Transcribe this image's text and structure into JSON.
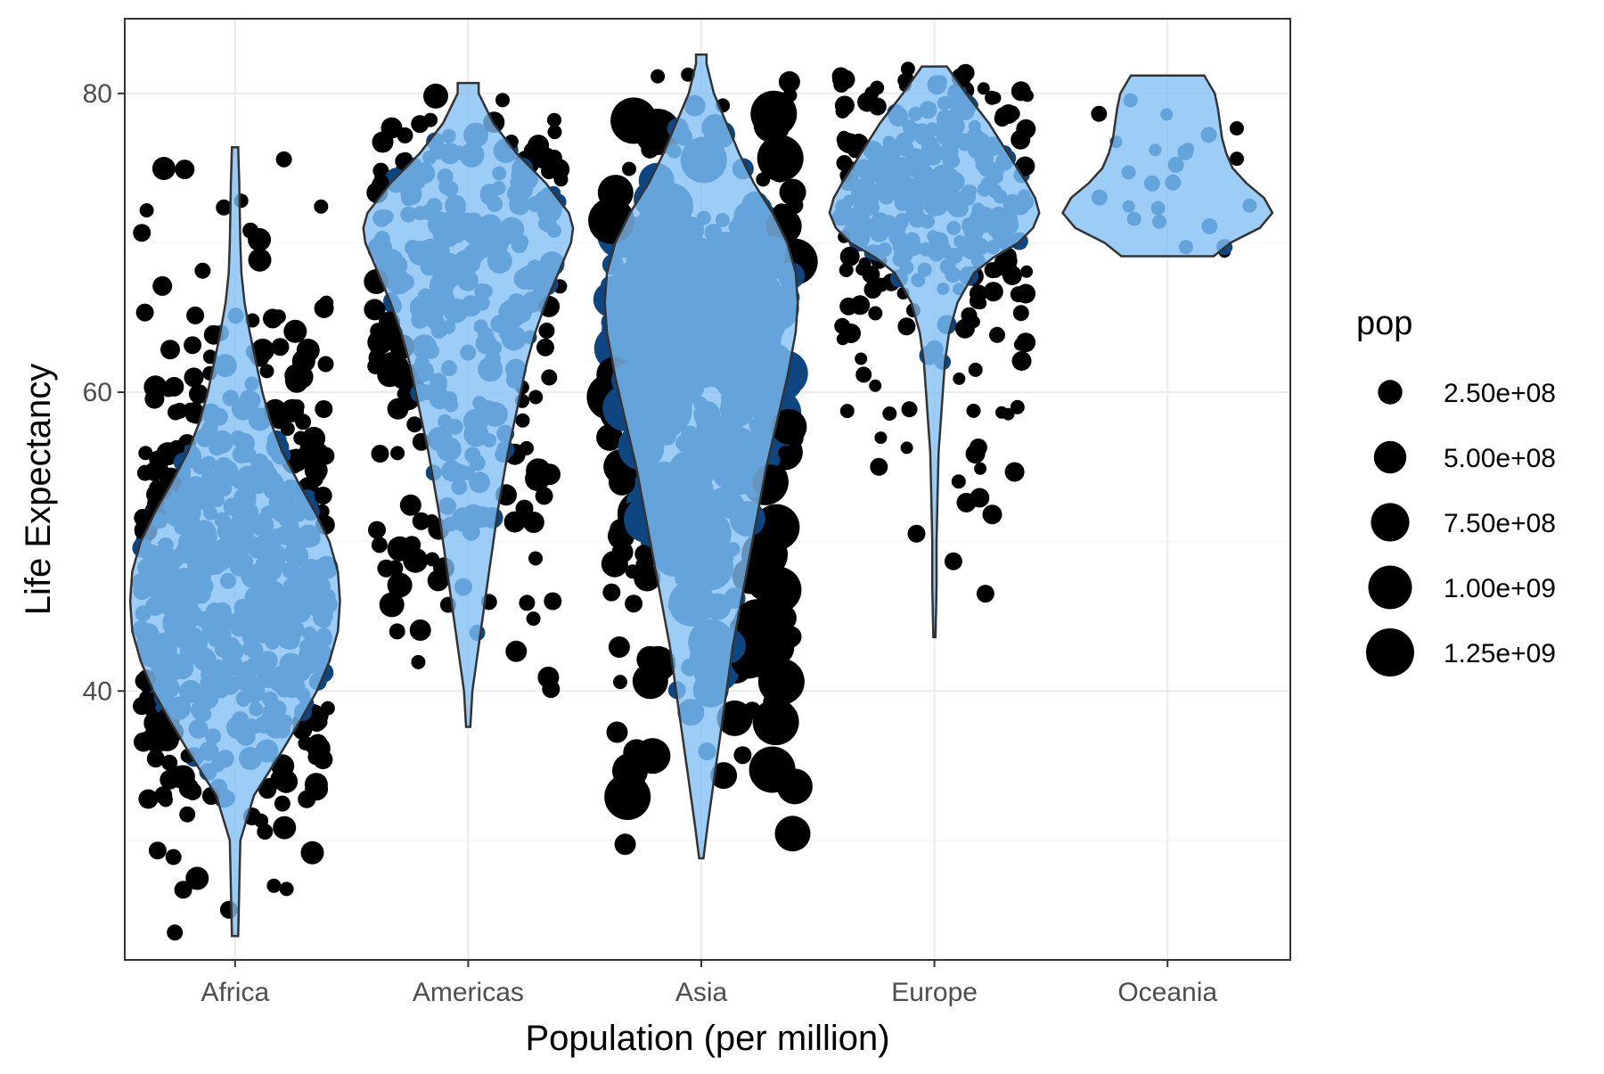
{
  "chart_data": {
    "type": "scatter",
    "subtype": "jittered points with violin overlay",
    "title": "",
    "xlabel": "Population (per million)",
    "ylabel": "Life Expectancy",
    "categories": [
      "Africa",
      "Americas",
      "Asia",
      "Europe",
      "Oceania"
    ],
    "ylim": [
      22,
      85
    ],
    "yticks": [
      40,
      60,
      80
    ],
    "grid": true,
    "colors": {
      "points": "#000000",
      "violin_fill": "#7fbff5",
      "violin_stroke": "#333333",
      "overlap_points": "#0d4680"
    },
    "violins": [
      {
        "category": "Africa",
        "min": 23.6,
        "max": 76.4,
        "density": [
          [
            23.6,
            0.03
          ],
          [
            30,
            0.05
          ],
          [
            33,
            0.18
          ],
          [
            36,
            0.45
          ],
          [
            38,
            0.62
          ],
          [
            40,
            0.78
          ],
          [
            42,
            0.9
          ],
          [
            44,
            0.98
          ],
          [
            46,
            1.0
          ],
          [
            48,
            0.98
          ],
          [
            50,
            0.9
          ],
          [
            52,
            0.76
          ],
          [
            54,
            0.6
          ],
          [
            56,
            0.45
          ],
          [
            58,
            0.34
          ],
          [
            60,
            0.26
          ],
          [
            62,
            0.2
          ],
          [
            64,
            0.14
          ],
          [
            66,
            0.09
          ],
          [
            68,
            0.06
          ],
          [
            70,
            0.05
          ],
          [
            72,
            0.045
          ],
          [
            74,
            0.04
          ],
          [
            76.4,
            0.03
          ]
        ]
      },
      {
        "category": "Americas",
        "min": 37.6,
        "max": 80.7,
        "density": [
          [
            37.6,
            0.02
          ],
          [
            40,
            0.04
          ],
          [
            42,
            0.08
          ],
          [
            44,
            0.12
          ],
          [
            46,
            0.16
          ],
          [
            48,
            0.2
          ],
          [
            50,
            0.24
          ],
          [
            52,
            0.28
          ],
          [
            54,
            0.33
          ],
          [
            56,
            0.38
          ],
          [
            58,
            0.44
          ],
          [
            60,
            0.5
          ],
          [
            62,
            0.56
          ],
          [
            64,
            0.64
          ],
          [
            66,
            0.74
          ],
          [
            68,
            0.86
          ],
          [
            70,
            0.98
          ],
          [
            71,
            1.0
          ],
          [
            72,
            0.96
          ],
          [
            74,
            0.74
          ],
          [
            76,
            0.46
          ],
          [
            78,
            0.24
          ],
          [
            80,
            0.1
          ],
          [
            80.7,
            0.1
          ]
        ]
      },
      {
        "category": "Asia",
        "min": 28.8,
        "max": 82.6,
        "density": [
          [
            28.8,
            0.02
          ],
          [
            31,
            0.06
          ],
          [
            34,
            0.12
          ],
          [
            37,
            0.18
          ],
          [
            40,
            0.24
          ],
          [
            43,
            0.3
          ],
          [
            46,
            0.38
          ],
          [
            49,
            0.46
          ],
          [
            52,
            0.54
          ],
          [
            55,
            0.62
          ],
          [
            58,
            0.72
          ],
          [
            61,
            0.82
          ],
          [
            64,
            0.9
          ],
          [
            66,
            0.92
          ],
          [
            68,
            0.9
          ],
          [
            70,
            0.82
          ],
          [
            72,
            0.68
          ],
          [
            74,
            0.5
          ],
          [
            76,
            0.36
          ],
          [
            78,
            0.24
          ],
          [
            80,
            0.12
          ],
          [
            82,
            0.05
          ],
          [
            82.6,
            0.05
          ]
        ]
      },
      {
        "category": "Europe",
        "min": 43.6,
        "max": 81.8,
        "density": [
          [
            43.6,
            0.01
          ],
          [
            47,
            0.02
          ],
          [
            50,
            0.02
          ],
          [
            53,
            0.03
          ],
          [
            56,
            0.04
          ],
          [
            58,
            0.06
          ],
          [
            60,
            0.08
          ],
          [
            62,
            0.1
          ],
          [
            64,
            0.14
          ],
          [
            66,
            0.22
          ],
          [
            68,
            0.38
          ],
          [
            69,
            0.56
          ],
          [
            70,
            0.8
          ],
          [
            71,
            0.94
          ],
          [
            72,
            1.0
          ],
          [
            73,
            0.96
          ],
          [
            74,
            0.88
          ],
          [
            76,
            0.7
          ],
          [
            78,
            0.52
          ],
          [
            80,
            0.3
          ],
          [
            81.8,
            0.12
          ]
        ]
      },
      {
        "category": "Oceania",
        "min": 69.1,
        "max": 81.2,
        "density": [
          [
            69.1,
            0.44
          ],
          [
            70,
            0.6
          ],
          [
            71,
            0.88
          ],
          [
            72,
            1.0
          ],
          [
            73,
            0.92
          ],
          [
            74,
            0.75
          ],
          [
            75,
            0.62
          ],
          [
            76,
            0.56
          ],
          [
            77,
            0.52
          ],
          [
            78,
            0.5
          ],
          [
            79,
            0.48
          ],
          [
            80,
            0.45
          ],
          [
            81.2,
            0.35
          ]
        ]
      }
    ]
  },
  "legend": {
    "title": "pop",
    "entries": [
      {
        "label": "2.50e+08",
        "value": 250000000
      },
      {
        "label": "5.00e+08",
        "value": 500000000
      },
      {
        "label": "7.50e+08",
        "value": 750000000
      },
      {
        "label": "1.00e+09",
        "value": 1000000000
      },
      {
        "label": "1.25e+09",
        "value": 1250000000
      }
    ]
  }
}
